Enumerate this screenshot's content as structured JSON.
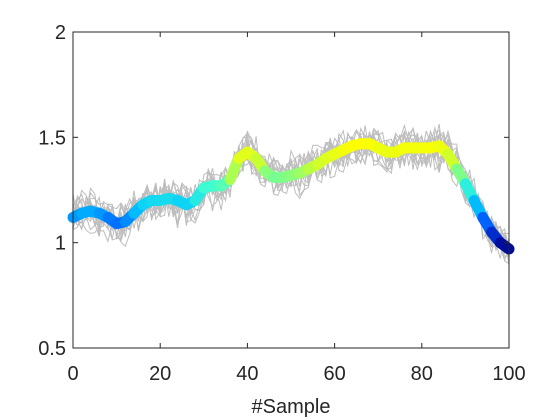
{
  "chart_data": {
    "type": "line",
    "xlabel": "#Sample",
    "ylabel": "",
    "title": "",
    "xlim": [
      0,
      100
    ],
    "ylim": [
      0.5,
      2
    ],
    "xticks": [
      0,
      20,
      40,
      60,
      80,
      100
    ],
    "yticks": [
      0.5,
      1,
      1.5,
      2
    ],
    "xtick_labels": [
      "0",
      "20",
      "40",
      "60",
      "80",
      "100"
    ],
    "ytick_labels": [
      "0.5",
      "1",
      "1.5",
      "2"
    ],
    "grid": false,
    "legend": "none",
    "colors": {
      "thin_lines": "#bdbdbd",
      "axes": "#262626",
      "mean_colormap": [
        "#00008b",
        "#0050ff",
        "#00c8ff",
        "#40ffd0",
        "#c8ff30",
        "#ffff00"
      ]
    },
    "series": [
      {
        "style": "thick-colormap",
        "x": [
          0,
          2,
          4,
          6,
          8,
          10,
          12,
          14,
          16,
          18,
          20,
          22,
          24,
          26,
          28,
          30,
          32,
          34,
          36,
          38,
          40,
          42,
          44,
          46,
          48,
          50,
          52,
          54,
          56,
          58,
          60,
          62,
          64,
          66,
          68,
          70,
          72,
          74,
          76,
          78,
          80,
          82,
          84,
          86,
          88,
          90,
          92,
          94,
          96,
          98,
          100
        ],
        "values": [
          1.12,
          1.14,
          1.15,
          1.14,
          1.12,
          1.09,
          1.1,
          1.14,
          1.18,
          1.2,
          1.2,
          1.21,
          1.2,
          1.18,
          1.2,
          1.26,
          1.27,
          1.27,
          1.3,
          1.4,
          1.43,
          1.4,
          1.34,
          1.31,
          1.31,
          1.32,
          1.33,
          1.35,
          1.37,
          1.4,
          1.42,
          1.44,
          1.46,
          1.47,
          1.47,
          1.45,
          1.43,
          1.43,
          1.45,
          1.45,
          1.45,
          1.45,
          1.46,
          1.42,
          1.35,
          1.28,
          1.2,
          1.12,
          1.05,
          1.0,
          0.97
        ]
      }
    ],
    "thin_series_count": 15
  }
}
